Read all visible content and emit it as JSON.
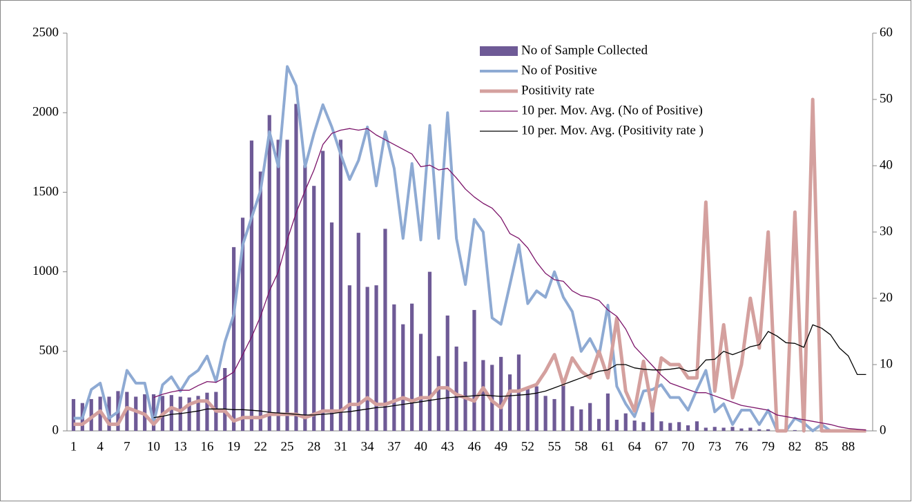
{
  "chart_data": {
    "type": "combo",
    "categories": [
      1,
      null,
      null,
      4,
      null,
      null,
      7,
      null,
      null,
      10,
      null,
      null,
      13,
      null,
      null,
      16,
      null,
      null,
      19,
      null,
      null,
      22,
      null,
      null,
      25,
      null,
      null,
      28,
      null,
      null,
      31,
      null,
      null,
      34,
      null,
      null,
      37,
      null,
      null,
      40,
      null,
      null,
      43,
      null,
      null,
      46,
      null,
      null,
      49,
      null,
      null,
      52,
      null,
      null,
      55,
      null,
      null,
      58,
      null,
      null,
      61,
      null,
      null,
      64,
      null,
      null,
      67,
      null,
      null,
      70,
      null,
      null,
      73,
      null,
      null,
      76,
      null,
      null,
      79,
      null,
      null,
      82,
      null,
      null,
      85,
      null,
      null,
      88,
      null,
      null
    ],
    "series": [
      {
        "name": "No of Sample Collected",
        "kind": "bar",
        "color": "#6e5a96",
        "values": [
          200,
          175,
          200,
          215,
          215,
          250,
          245,
          215,
          230,
          230,
          220,
          225,
          215,
          210,
          220,
          240,
          245,
          395,
          1155,
          1340,
          1825,
          1630,
          1985,
          1830,
          1830,
          2055,
          1670,
          1540,
          1760,
          1310,
          1830,
          915,
          1245,
          905,
          915,
          1270,
          795,
          670,
          800,
          610,
          1000,
          470,
          725,
          530,
          435,
          760,
          445,
          415,
          465,
          355,
          480,
          270,
          280,
          220,
          200,
          290,
          155,
          135,
          175,
          75,
          235,
          70,
          110,
          65,
          55,
          120,
          60,
          50,
          55,
          35,
          60,
          20,
          25,
          20,
          25,
          15,
          20,
          10,
          10,
          5,
          5,
          5,
          5,
          5,
          3,
          2,
          2,
          2,
          2,
          2
        ]
      },
      {
        "name": "No of Positive",
        "kind": "line",
        "color": "#8eaad3",
        "width": 4,
        "values": [
          80,
          80,
          260,
          300,
          80,
          120,
          380,
          300,
          300,
          50,
          290,
          340,
          250,
          340,
          380,
          470,
          310,
          560,
          730,
          1170,
          1340,
          1510,
          1880,
          1660,
          2290,
          2170,
          1660,
          1870,
          2050,
          1910,
          1740,
          1580,
          1700,
          1910,
          1540,
          1880,
          1650,
          1210,
          1680,
          1200,
          1920,
          1210,
          2000,
          1210,
          920,
          1330,
          1250,
          710,
          670,
          920,
          1170,
          800,
          880,
          840,
          1000,
          840,
          750,
          500,
          580,
          470,
          790,
          280,
          170,
          90,
          250,
          260,
          290,
          210,
          210,
          130,
          260,
          380,
          120,
          170,
          40,
          130,
          130,
          40,
          130,
          0,
          0,
          80,
          50,
          0,
          40,
          0,
          0,
          0,
          0,
          0
        ]
      },
      {
        "name": "Positivity rate",
        "kind": "line",
        "axis": "y2",
        "color": "#d4a09e",
        "width": 5,
        "values": [
          1,
          1,
          2,
          3,
          1,
          1,
          3.5,
          3,
          2.5,
          1,
          2.5,
          3.5,
          3,
          4,
          4.5,
          4.5,
          3,
          3,
          1.5,
          2,
          2,
          2,
          2.5,
          2.5,
          2.5,
          2.5,
          2,
          2.5,
          3,
          3,
          3,
          4,
          4,
          5,
          4,
          4,
          4.5,
          5,
          4.5,
          5,
          5,
          6.5,
          6.5,
          5.5,
          5,
          4.5,
          6.5,
          4.5,
          3.5,
          6,
          6,
          6.5,
          7,
          9,
          11.5,
          7,
          11,
          9,
          8,
          12,
          8,
          17,
          6,
          3,
          10.5,
          3,
          11,
          10,
          10,
          8,
          8,
          34.5,
          6,
          16,
          5,
          10,
          20,
          12.5,
          30,
          0,
          0,
          33,
          0,
          50,
          0,
          0,
          0,
          0,
          0,
          0
        ]
      },
      {
        "name": "10 per. Mov. Avg. (No of Positive)",
        "kind": "line",
        "color": "#7b1369",
        "width": 1.3,
        "values": [
          null,
          null,
          null,
          null,
          null,
          null,
          null,
          null,
          null,
          210,
          230,
          245,
          255,
          255,
          285,
          310,
          305,
          335,
          370,
          480,
          590,
          720,
          880,
          1000,
          1200,
          1370,
          1510,
          1640,
          1800,
          1870,
          1890,
          1900,
          1890,
          1900,
          1860,
          1830,
          1800,
          1770,
          1740,
          1660,
          1670,
          1640,
          1650,
          1590,
          1520,
          1470,
          1430,
          1400,
          1340,
          1240,
          1210,
          1150,
          1060,
          990,
          950,
          940,
          880,
          850,
          840,
          820,
          760,
          720,
          640,
          530,
          470,
          410,
          350,
          300,
          280,
          260,
          240,
          240,
          220,
          200,
          180,
          160,
          150,
          140,
          130,
          100,
          90,
          80,
          70,
          60,
          50,
          40,
          25,
          15,
          10,
          5
        ]
      },
      {
        "name": "10 per. Mov. Avg. (Positivity rate )",
        "kind": "line",
        "axis": "y2",
        "color": "#000000",
        "width": 1.3,
        "values": [
          null,
          null,
          null,
          null,
          null,
          null,
          null,
          null,
          null,
          2,
          2.2,
          2.5,
          2.6,
          2.8,
          3,
          3.3,
          3.3,
          3.3,
          3.2,
          3.2,
          3.1,
          3,
          2.8,
          2.7,
          2.6,
          2.5,
          2.4,
          2.4,
          2.5,
          2.6,
          2.8,
          2.9,
          3.1,
          3.3,
          3.5,
          3.6,
          3.8,
          4,
          4.2,
          4.4,
          4.6,
          4.8,
          5,
          5.1,
          5.2,
          5.3,
          5.4,
          5.3,
          5.2,
          5.3,
          5.4,
          5.5,
          5.7,
          6,
          6.5,
          7,
          7.5,
          8,
          8.5,
          9,
          9.2,
          10,
          10,
          9.5,
          9.3,
          9.2,
          9.2,
          9.3,
          9.5,
          9,
          9.2,
          10.7,
          10.8,
          12,
          11.5,
          12,
          12.7,
          13,
          15,
          14.3,
          13.3,
          13.2,
          12.6,
          16,
          15.5,
          14.5,
          12.5,
          11.3,
          8.5,
          8.5
        ]
      }
    ],
    "ylim": [
      0,
      2500
    ],
    "yticks": [
      0,
      500,
      1000,
      1500,
      2000,
      2500
    ],
    "y2lim": [
      0,
      60
    ],
    "y2ticks": [
      0,
      10,
      20,
      30,
      40,
      50,
      60
    ],
    "legend": "upper right"
  }
}
